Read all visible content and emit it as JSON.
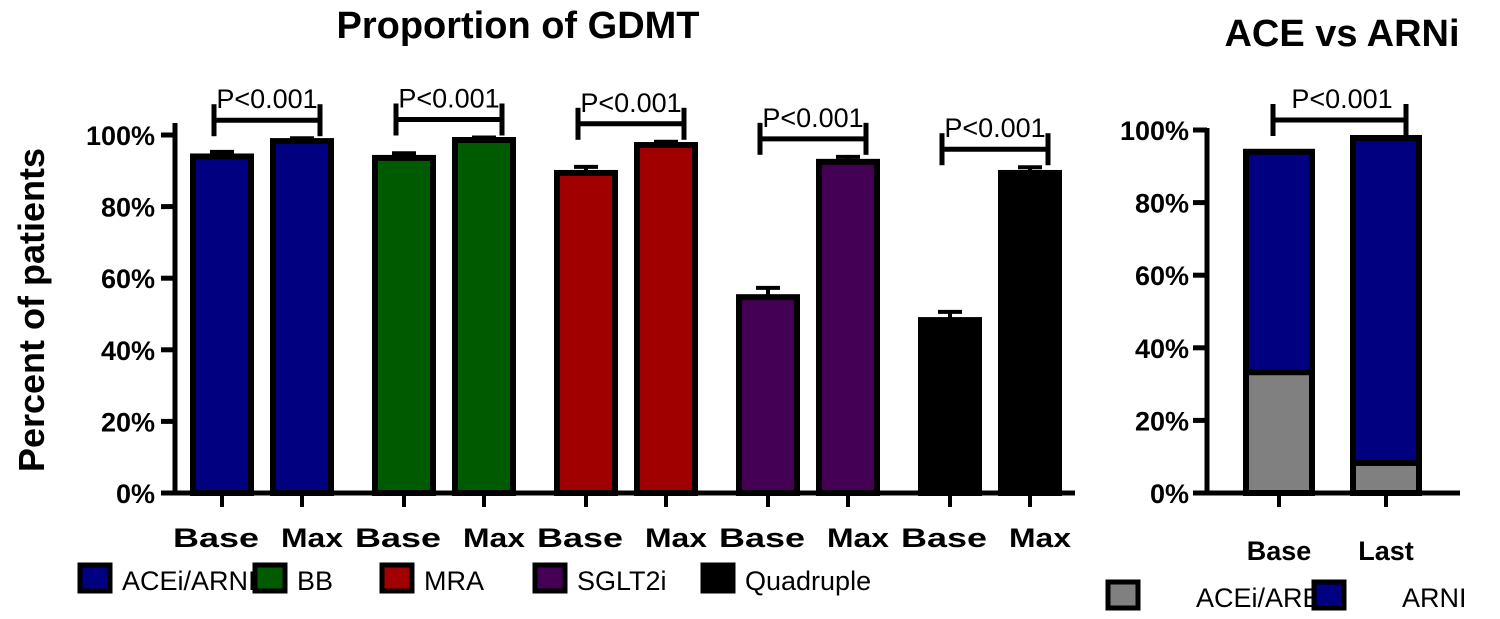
{
  "chart_data": [
    {
      "type": "bar",
      "title": "Proportion of GDMT",
      "ylabel": "Percent of patients",
      "xlabel": "",
      "ylim": [
        0,
        100
      ],
      "yticks": [
        "0%",
        "20%",
        "40%",
        "60%",
        "80%",
        "100%"
      ],
      "ytick_values": [
        0,
        20,
        40,
        60,
        80,
        100
      ],
      "grid": false,
      "legend_position": "bottom",
      "categories": [
        "Base",
        "Max"
      ],
      "groups": [
        {
          "name": "ACEi/ARNI",
          "color": "#000080",
          "values": [
            94,
            98.3
          ],
          "errors": [
            1.3,
            0.8
          ],
          "pvalue": "P<0.001"
        },
        {
          "name": "BB",
          "color": "#005a00",
          "values": [
            93.6,
            98.6
          ],
          "errors": [
            1.3,
            0.7
          ],
          "pvalue": "P<0.001"
        },
        {
          "name": "MRA",
          "color": "#a00000",
          "values": [
            89.4,
            97.2
          ],
          "errors": [
            1.7,
            0.9
          ],
          "pvalue": "P<0.001"
        },
        {
          "name": "SGLT2i",
          "color": "#440055",
          "values": [
            54.7,
            92.5
          ],
          "errors": [
            2.6,
            1.4
          ],
          "pvalue": "P<0.001"
        },
        {
          "name": "Quadruple",
          "color": "#000000",
          "values": [
            48.3,
            89.4
          ],
          "errors": [
            2.3,
            1.6
          ],
          "pvalue": "P<0.001"
        }
      ]
    },
    {
      "type": "stacked-bar",
      "title": "ACE vs ARNi",
      "ylim": [
        0,
        100
      ],
      "yticks": [
        "0%",
        "20%",
        "40%",
        "60%",
        "80%",
        "100%"
      ],
      "ytick_values": [
        0,
        20,
        40,
        60,
        80,
        100
      ],
      "grid": false,
      "legend_position": "bottom",
      "categories": [
        "Base",
        "Last"
      ],
      "pvalue": "P<0.001",
      "series": [
        {
          "name": "ACEi/ARB",
          "color": "#808080",
          "values": [
            33.3,
            8.3
          ]
        },
        {
          "name": "ARNI",
          "color": "#000080",
          "values": [
            60.7,
            89.5
          ]
        }
      ]
    }
  ]
}
